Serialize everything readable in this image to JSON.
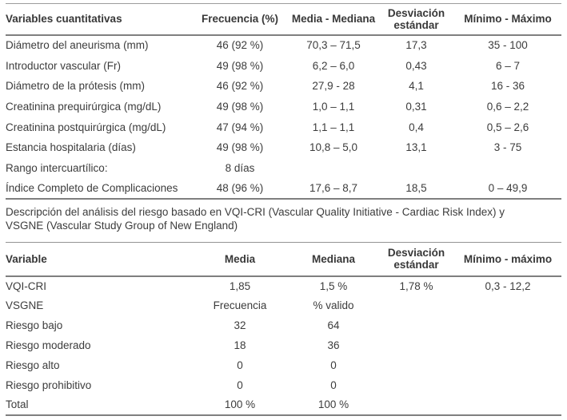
{
  "colors": {
    "text": "#3c3c3c",
    "rule_thin": "#9c9c9c",
    "rule_thick": "#7f7f7f",
    "background": "#ffffff"
  },
  "table1": {
    "headers": [
      "Variables cuantitativas",
      "Frecuencia (%)",
      "Media - Mediana",
      "Desviación estándar",
      "Mínimo - Máximo"
    ],
    "rows": [
      [
        "Diámetro del aneurisma (mm)",
        "46 (92 %)",
        "70,3 – 71,5",
        "17,3",
        "35 - 100"
      ],
      [
        "Introductor vascular (Fr)",
        "49 (98 %)",
        "6,2 – 6,0",
        "0,43",
        "6 – 7"
      ],
      [
        "Diámetro de la prótesis (mm)",
        "46 (92 %)",
        "27,9 - 28",
        "4,1",
        "16 - 36"
      ],
      [
        "Creatinina prequirúrgica (mg/dL)",
        "49 (98 %)",
        "1,0 – 1,1",
        "0,31",
        "0,6 – 2,2"
      ],
      [
        "Creatinina postquirúrgica (mg/dL)",
        "47 (94 %)",
        "1,1 – 1,1",
        "0,4",
        "0,5 – 2,6"
      ],
      [
        "Estancia hospitalaria (días)",
        "49 (98 %)",
        "10,8 – 5,0",
        "13,1",
        "3 - 75"
      ],
      [
        "Rango intercuartílico:",
        "8 días",
        "",
        "",
        ""
      ],
      [
        "Índice Completo de Complicaciones",
        "48 (96 %)",
        "17,6 – 8,7",
        "18,5",
        "0 – 49,9"
      ]
    ]
  },
  "caption": {
    "lines": [
      "Descripción del análisis del riesgo basado en VQI-CRI (Vascular Quality Initiative - Cardiac Risk Index) y",
      "VSGNE (Vascular Study Group of New England)"
    ]
  },
  "table2": {
    "headers": [
      "Variable",
      "Media",
      "Mediana",
      "Desviación estándar",
      "Mínimo - máximo"
    ],
    "rows": [
      [
        "VQI-CRI",
        "1,85",
        "1,5 %",
        "1,78 %",
        "0,3 - 12,2"
      ],
      [
        "VSGNE",
        "Frecuencia",
        "% valido",
        "",
        ""
      ],
      [
        "Riesgo bajo",
        "32",
        "64",
        "",
        ""
      ],
      [
        "Riesgo moderado",
        "18",
        "36",
        "",
        ""
      ],
      [
        "Riesgo alto",
        "0",
        "0",
        "",
        ""
      ],
      [
        "Riesgo prohibitivo",
        "0",
        "0",
        "",
        ""
      ],
      [
        "Total",
        "100 %",
        "100 %",
        "",
        ""
      ]
    ]
  }
}
